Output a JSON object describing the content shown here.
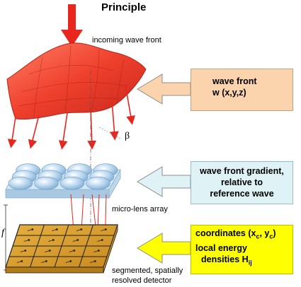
{
  "title": "Principle",
  "labels": {
    "incoming": "incoming wave front",
    "beta": "β",
    "micro_lens": "micro-lens array",
    "detector_line1": "segmented, spatially",
    "detector_line2": "resolved detector",
    "focal": "f"
  },
  "boxes": {
    "wavefront": {
      "line1": "wave front",
      "line2": "w (x,y,z)",
      "color": "#fbd3ac"
    },
    "gradient": {
      "line1": "wave front gradient,",
      "line2": "relative to",
      "line3": "reference wave",
      "color": "#dff2f6"
    },
    "coords": {
      "line1_pre": "coordinates (x",
      "line1_sub1": "c",
      "line1_mid": ", y",
      "line1_sub2": "c",
      "line1_post": ")",
      "line2": "local energy",
      "line3_pre": "densities H",
      "line3_sub": "ij",
      "color": "#ffff00"
    }
  },
  "colors": {
    "arrow_red": "#e8261e",
    "surface_red": "#f04a35",
    "lens_blue": "#a8cce8",
    "detector_gold": "#d8a030"
  }
}
